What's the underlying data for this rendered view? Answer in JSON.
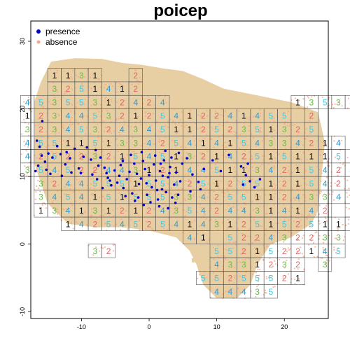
{
  "chart_data": {
    "type": "scatter",
    "title": "poicep",
    "xlabel": "",
    "ylabel": "",
    "xlim": [
      -17.5,
      26.5
    ],
    "ylim": [
      -11,
      33
    ],
    "x_ticks": [
      -10,
      0,
      10,
      20
    ],
    "y_ticks": [
      -10,
      0,
      10,
      20,
      30
    ],
    "grid": false,
    "legend": {
      "placement": "top-left",
      "entries": [
        {
          "label": "presence",
          "color": "#0000cc",
          "shape": "dot"
        },
        {
          "label": "absence",
          "color": "#f4a58a",
          "shape": "dot"
        }
      ]
    },
    "land_color": "#e8cfa3",
    "cell_size": 2,
    "label_colors": {
      "1": "#000000",
      "2": "#e06666",
      "3": "#66bb44",
      "4": "#3399cc",
      "5": "#44c8e0"
    },
    "cell_rows": [
      {
        "y": 25,
        "x_start": -14,
        "labels": "1131  2"
      },
      {
        "y": 23,
        "x_start": -14,
        "labels": "3251412"
      },
      {
        "y": 21,
        "x_start": -18,
        "labels": "45355312424         13534 4"
      },
      {
        "y": 19,
        "x_start": -18,
        "labels": "12344532125412241455 2"
      },
      {
        "y": 17,
        "x_start": -18,
        "labels": "3234532434511252351325"
      },
      {
        "y": 15,
        "x_start": -18,
        "labels": "455115133425414154334214"
      },
      {
        "y": 13,
        "x_start": -18,
        "labels": "4252232154513214251511155"
      },
      {
        "y": 11,
        "x_start": -18,
        "labels": "35452244312144511342154245"
      },
      {
        "y": 9,
        "x_start": -16,
        "labels": "3244555155425125512154254"
      },
      {
        "y": 7,
        "x_start": -16,
        "labels": "345415155533425511243342"
      },
      {
        "y": 5,
        "x_start": -16,
        "labels": "1341312124354244314142 32"
      },
      {
        "y": 3,
        "x_start": -12,
        "labels": "1425452541431251525111122"
      },
      {
        "y": 1,
        "x_start": 6,
        "labels": "41 522432233"
      },
      {
        "y": -1,
        "x_start": -8,
        "labels": "32"
      },
      {
        "y": -1,
        "x_start": 10,
        "labels": "5521522145"
      },
      {
        "y": -3,
        "x_start": 10,
        "labels": "4331232 3"
      },
      {
        "y": -5,
        "x_start": 8,
        "labels": "55255521"
      },
      {
        "y": -7,
        "x_start": 10,
        "labels": "44435"
      }
    ],
    "presence_points": [
      [
        -15.8,
        18.2
      ],
      [
        -16.6,
        15.3
      ],
      [
        -16.2,
        14.4
      ],
      [
        -15.9,
        13.1
      ],
      [
        -15.4,
        12.2
      ],
      [
        -14.9,
        13.4
      ],
      [
        -14.3,
        12.8
      ],
      [
        -13.6,
        14.5
      ],
      [
        -13.1,
        13.3
      ],
      [
        -12.4,
        11.8
      ],
      [
        -12.2,
        13.6
      ],
      [
        -11.7,
        12.7
      ],
      [
        -11.0,
        14.1
      ],
      [
        -10.4,
        11.2
      ],
      [
        -10.1,
        10.5
      ],
      [
        -9.7,
        12.9
      ],
      [
        -9.2,
        14.3
      ],
      [
        -8.6,
        12.5
      ],
      [
        -7.9,
        13.9
      ],
      [
        -7.5,
        11.6
      ],
      [
        -7.2,
        12.8
      ],
      [
        -6.6,
        11.3
      ],
      [
        -6.1,
        9.8
      ],
      [
        -5.6,
        8.7
      ],
      [
        -5.1,
        10.9
      ],
      [
        -4.7,
        9.1
      ],
      [
        -4.2,
        11.7
      ],
      [
        -3.8,
        8.3
      ],
      [
        -3.3,
        9.6
      ],
      [
        -2.9,
        10.7
      ],
      [
        -2.5,
        7.5
      ],
      [
        -2.2,
        11.9
      ],
      [
        -1.8,
        10.4
      ],
      [
        -1.5,
        8.9
      ],
      [
        -1.2,
        9.7
      ],
      [
        -0.9,
        12.3
      ],
      [
        -0.6,
        11.1
      ],
      [
        -0.3,
        7.3
      ],
      [
        0.0,
        10.2
      ],
      [
        0.4,
        8.4
      ],
      [
        0.7,
        11.8
      ],
      [
        1.0,
        9.4
      ],
      [
        1.3,
        6.6
      ],
      [
        1.6,
        10.8
      ],
      [
        1.9,
        8.1
      ],
      [
        2.2,
        12.4
      ],
      [
        2.5,
        7.7
      ],
      [
        2.8,
        9.9
      ],
      [
        3.1,
        11.4
      ],
      [
        3.4,
        6.9
      ],
      [
        3.7,
        8.8
      ],
      [
        4.0,
        10.6
      ],
      [
        4.3,
        7.3
      ],
      [
        4.6,
        9.3
      ],
      [
        4.9,
        11.9
      ],
      [
        0.2,
        6.2
      ],
      [
        1.5,
        5.6
      ],
      [
        2.8,
        5.3
      ],
      [
        3.9,
        6.1
      ],
      [
        -0.8,
        5.8
      ],
      [
        -2.1,
        6.4
      ],
      [
        -3.5,
        7.1
      ],
      [
        -4.4,
        10.1
      ],
      [
        -5.8,
        9.4
      ],
      [
        -6.9,
        8.3
      ],
      [
        5.6,
        12.7
      ],
      [
        6.4,
        10.3
      ],
      [
        7.3,
        9.2
      ],
      [
        8.1,
        11.1
      ],
      [
        9.4,
        12.4
      ],
      [
        10.6,
        10.8
      ],
      [
        11.8,
        13.2
      ],
      [
        13.6,
        11.5
      ],
      [
        14.3,
        10.2
      ],
      [
        14.9,
        9.3
      ],
      [
        15.6,
        8.4
      ],
      [
        13.9,
        8.8
      ],
      [
        14.6,
        11.9
      ],
      [
        16.4,
        9.6
      ],
      [
        -1.1,
        13.6
      ],
      [
        0.9,
        13.1
      ],
      [
        2.4,
        13.8
      ],
      [
        -16.8,
        10.8
      ],
      [
        -16.4,
        11.6
      ],
      [
        -15.2,
        11.0
      ],
      [
        -14.6,
        10.4
      ],
      [
        -12.9,
        10.1
      ],
      [
        -11.5,
        10.6
      ],
      [
        -8.4,
        10.3
      ],
      [
        -7.7,
        9.6
      ],
      [
        -6.3,
        10.5
      ],
      [
        -3.9,
        12.3
      ],
      [
        -2.7,
        13.2
      ],
      [
        1.7,
        11.9
      ],
      [
        3.3,
        12.8
      ],
      [
        4.4,
        13.5
      ],
      [
        6.1,
        7.8
      ],
      [
        7.6,
        8.1
      ],
      [
        -0.4,
        9.0
      ],
      [
        2.0,
        10.1
      ],
      [
        3.0,
        10.5
      ],
      [
        1.2,
        8.0
      ],
      [
        -1.6,
        6.9
      ]
    ],
    "absence_point_count": 1500
  }
}
